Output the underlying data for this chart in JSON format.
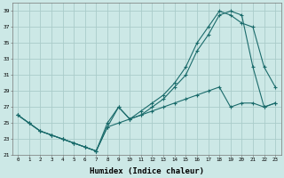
{
  "xlabel": "Humidex (Indice chaleur)",
  "background_color": "#cce8e6",
  "grid_color": "#aaccca",
  "line_color": "#1a6b6b",
  "xlim": [
    -0.5,
    23.5
  ],
  "ylim": [
    21,
    40
  ],
  "yticks": [
    21,
    23,
    25,
    27,
    29,
    31,
    33,
    35,
    37,
    39
  ],
  "xticks": [
    0,
    1,
    2,
    3,
    4,
    5,
    6,
    7,
    8,
    9,
    10,
    11,
    12,
    13,
    14,
    15,
    16,
    17,
    18,
    19,
    20,
    21,
    22,
    23
  ],
  "line1_x": [
    0,
    1,
    2,
    3,
    4,
    5,
    6,
    7,
    8,
    9,
    10,
    11,
    12,
    13,
    14,
    15,
    16,
    17,
    18,
    19,
    20,
    21,
    22,
    23
  ],
  "line1_y": [
    26,
    25,
    24,
    23.5,
    23,
    22.5,
    22,
    21.5,
    25,
    27,
    25.5,
    26.5,
    27.5,
    28.5,
    30,
    32,
    35,
    37,
    39,
    38.5,
    37.5,
    37,
    32,
    29.5
  ],
  "line2_x": [
    0,
    1,
    2,
    3,
    4,
    5,
    6,
    7,
    8,
    9,
    10,
    11,
    12,
    13,
    14,
    15,
    16,
    17,
    18,
    19,
    20,
    21,
    22,
    23
  ],
  "line2_y": [
    26,
    25,
    24,
    23.5,
    23,
    22.5,
    22,
    21.5,
    24.5,
    27,
    25.5,
    26,
    27,
    28,
    29.5,
    31,
    34,
    36,
    38.5,
    39,
    38.5,
    32,
    27,
    27.5
  ],
  "line3_x": [
    0,
    1,
    2,
    3,
    4,
    5,
    6,
    7,
    8,
    9,
    10,
    11,
    12,
    13,
    14,
    15,
    16,
    17,
    18,
    19,
    20,
    21,
    22,
    23
  ],
  "line3_y": [
    26,
    25,
    24,
    23.5,
    23,
    22.5,
    22,
    21.5,
    24.5,
    25,
    25.5,
    26,
    26.5,
    27,
    27.5,
    28,
    28.5,
    29,
    29.5,
    27,
    27.5,
    27.5,
    27,
    27.5
  ]
}
